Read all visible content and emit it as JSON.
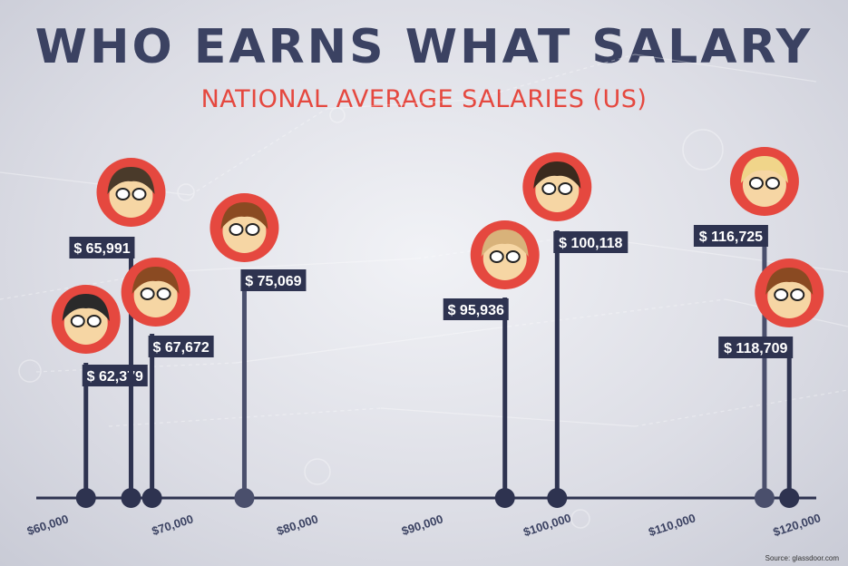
{
  "title": "WHO EARNS WHAT SALARY",
  "subtitle": "NATIONAL AVERAGE SALARIES (US)",
  "source": "Source: glassdoor.com",
  "colors": {
    "stem": "#2e3350",
    "stem_light": "#4a4f6c",
    "label_bg": "#2e3350",
    "head_ring": "#e5483f",
    "title": "#3b4262",
    "subtitle": "#e5483f"
  },
  "chart_data": {
    "type": "scatter",
    "title": "WHO EARNS WHAT SALARY",
    "subtitle": "NATIONAL AVERAGE SALARIES (US)",
    "xlim": [
      60000,
      120000
    ],
    "x_ticks": [
      "$60,000",
      "$70,000",
      "$80,000",
      "$90,000",
      "$100,000",
      "$110,000",
      "$120,000"
    ],
    "x_tick_values": [
      60000,
      70000,
      80000,
      90000,
      100000,
      110000,
      120000
    ],
    "points": [
      {
        "value": 62379,
        "label": "$ 62,379"
      },
      {
        "value": 65991,
        "label": "$ 65,991"
      },
      {
        "value": 67672,
        "label": "$ 67,672"
      },
      {
        "value": 75069,
        "label": "$ 75,069"
      },
      {
        "value": 95936,
        "label": "$ 95,936"
      },
      {
        "value": 100118,
        "label": "$ 100,118"
      },
      {
        "value": 116725,
        "label": "$ 116,725"
      },
      {
        "value": 118709,
        "label": "$ 118,709"
      }
    ]
  }
}
